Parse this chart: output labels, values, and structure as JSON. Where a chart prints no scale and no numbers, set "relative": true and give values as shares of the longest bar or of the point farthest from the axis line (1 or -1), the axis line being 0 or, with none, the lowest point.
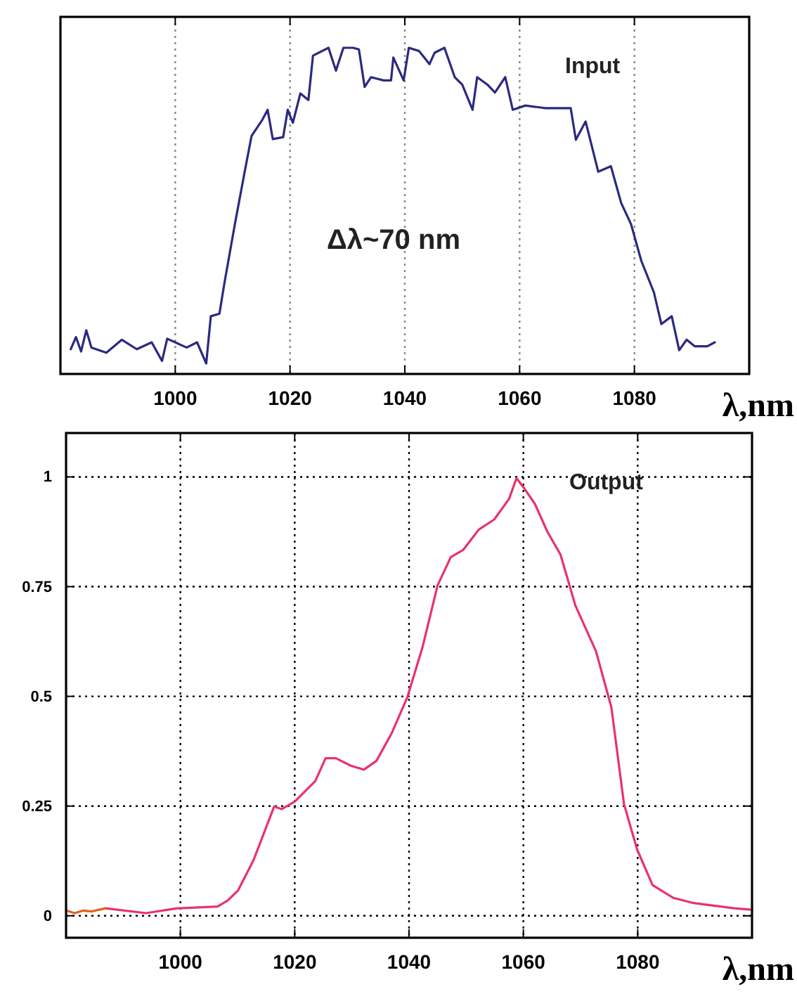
{
  "chart_data": [
    {
      "type": "line",
      "relative": true,
      "xlabel": "λ,nm",
      "xlim": [
        980,
        1100
      ],
      "xticks": [
        1000,
        1020,
        1040,
        1060,
        1080
      ],
      "grid": "x",
      "line_style": "solid",
      "tick_labels": "x",
      "annotations": [
        {
          "text": "Input"
        },
        {
          "text": "Δλ~70 nm"
        }
      ],
      "series": [
        {
          "color": "#2b2a80",
          "x": [
            981.8,
            982.7,
            983.6,
            984.5,
            985.4,
            988,
            990.7,
            993.3,
            995.9,
            997.7,
            998.6,
            1002,
            1003.8,
            1005.4,
            1006.2,
            1007.7,
            1008.6,
            1010.4,
            1012.1,
            1013.3,
            1015.2,
            1016.1,
            1017,
            1018.8,
            1019.6,
            1020.5,
            1021.8,
            1023.2,
            1024,
            1026.7,
            1028,
            1029.3,
            1031,
            1032,
            1033,
            1034.1,
            1036.3,
            1037.6,
            1038,
            1039.8,
            1040.7,
            1042.5,
            1044.3,
            1045.2,
            1046.9,
            1048.7,
            1050,
            1051.8,
            1052.6,
            1054.4,
            1055.7,
            1057.5,
            1058.8,
            1061,
            1064.5,
            1068.9,
            1069.8,
            1071.5,
            1073.7,
            1075.9,
            1077.7,
            1079.4,
            1081.2,
            1083.4,
            1084.7,
            1086.5,
            1087.8,
            1089.1,
            1090.5,
            1092.7,
            1094
          ],
          "values": [
            0.076,
            0.113,
            0.069,
            0.134,
            0.081,
            0.065,
            0.105,
            0.076,
            0.097,
            0.04,
            0.108,
            0.081,
            0.097,
            0.032,
            0.177,
            0.185,
            0.282,
            0.46,
            0.62,
            0.73,
            0.78,
            0.81,
            0.72,
            0.726,
            0.81,
            0.77,
            0.86,
            0.84,
            0.976,
            1,
            0.93,
            1,
            1,
            0.995,
            0.88,
            0.91,
            0.9,
            0.9,
            0.97,
            0.9,
            1,
            0.99,
            0.95,
            0.985,
            1,
            0.91,
            0.887,
            0.81,
            0.91,
            0.887,
            0.863,
            0.91,
            0.81,
            0.823,
            0.815,
            0.815,
            0.718,
            0.774,
            0.62,
            0.637,
            0.524,
            0.46,
            0.347,
            0.25,
            0.153,
            0.177,
            0.073,
            0.105,
            0.085,
            0.085,
            0.097
          ]
        }
      ]
    },
    {
      "type": "line",
      "xlabel": "λ,nm",
      "xlim": [
        980,
        1100
      ],
      "xticks": [
        1000,
        1020,
        1040,
        1060,
        1080
      ],
      "ylim": [
        -0.05,
        1.1
      ],
      "yticks": [
        0,
        0.25,
        0.5,
        0.75,
        1
      ],
      "grid": true,
      "line_style": "solid",
      "annotations": [
        {
          "text": "Output"
        }
      ],
      "series": [
        {
          "color": "#e8336a",
          "x": [
            986.9,
            994,
            999.4,
            1006.5,
            1008.3,
            1010.1,
            1012.8,
            1016.4,
            1017.7,
            1020,
            1023.6,
            1025.4,
            1027.2,
            1029.8,
            1032.1,
            1034.3,
            1037,
            1039.7,
            1042.4,
            1045,
            1047.3,
            1049.5,
            1052.2,
            1054.9,
            1057.5,
            1058.8,
            1060.2,
            1062,
            1064.2,
            1066.5,
            1069.1,
            1072.7,
            1075.4,
            1077.6,
            1079.9,
            1082.6,
            1086.2,
            1089.8,
            1093.3,
            1096.9,
            1100
          ],
          "values": [
            0.017,
            0.006,
            0.017,
            0.021,
            0.035,
            0.058,
            0.127,
            0.249,
            0.243,
            0.26,
            0.307,
            0.359,
            0.359,
            0.342,
            0.333,
            0.353,
            0.417,
            0.498,
            0.614,
            0.753,
            0.817,
            0.834,
            0.88,
            0.903,
            0.95,
            0.997,
            0.973,
            0.939,
            0.875,
            0.823,
            0.707,
            0.603,
            0.475,
            0.255,
            0.151,
            0.07,
            0.041,
            0.029,
            0.023,
            0.017,
            0.014
          ]
        },
        {
          "color": "#e0601e",
          "x": [
            980,
            981.5,
            983,
            984.5,
            986.9
          ],
          "values": [
            0.012,
            0.006,
            0.012,
            0.01,
            0.017
          ]
        }
      ]
    }
  ]
}
